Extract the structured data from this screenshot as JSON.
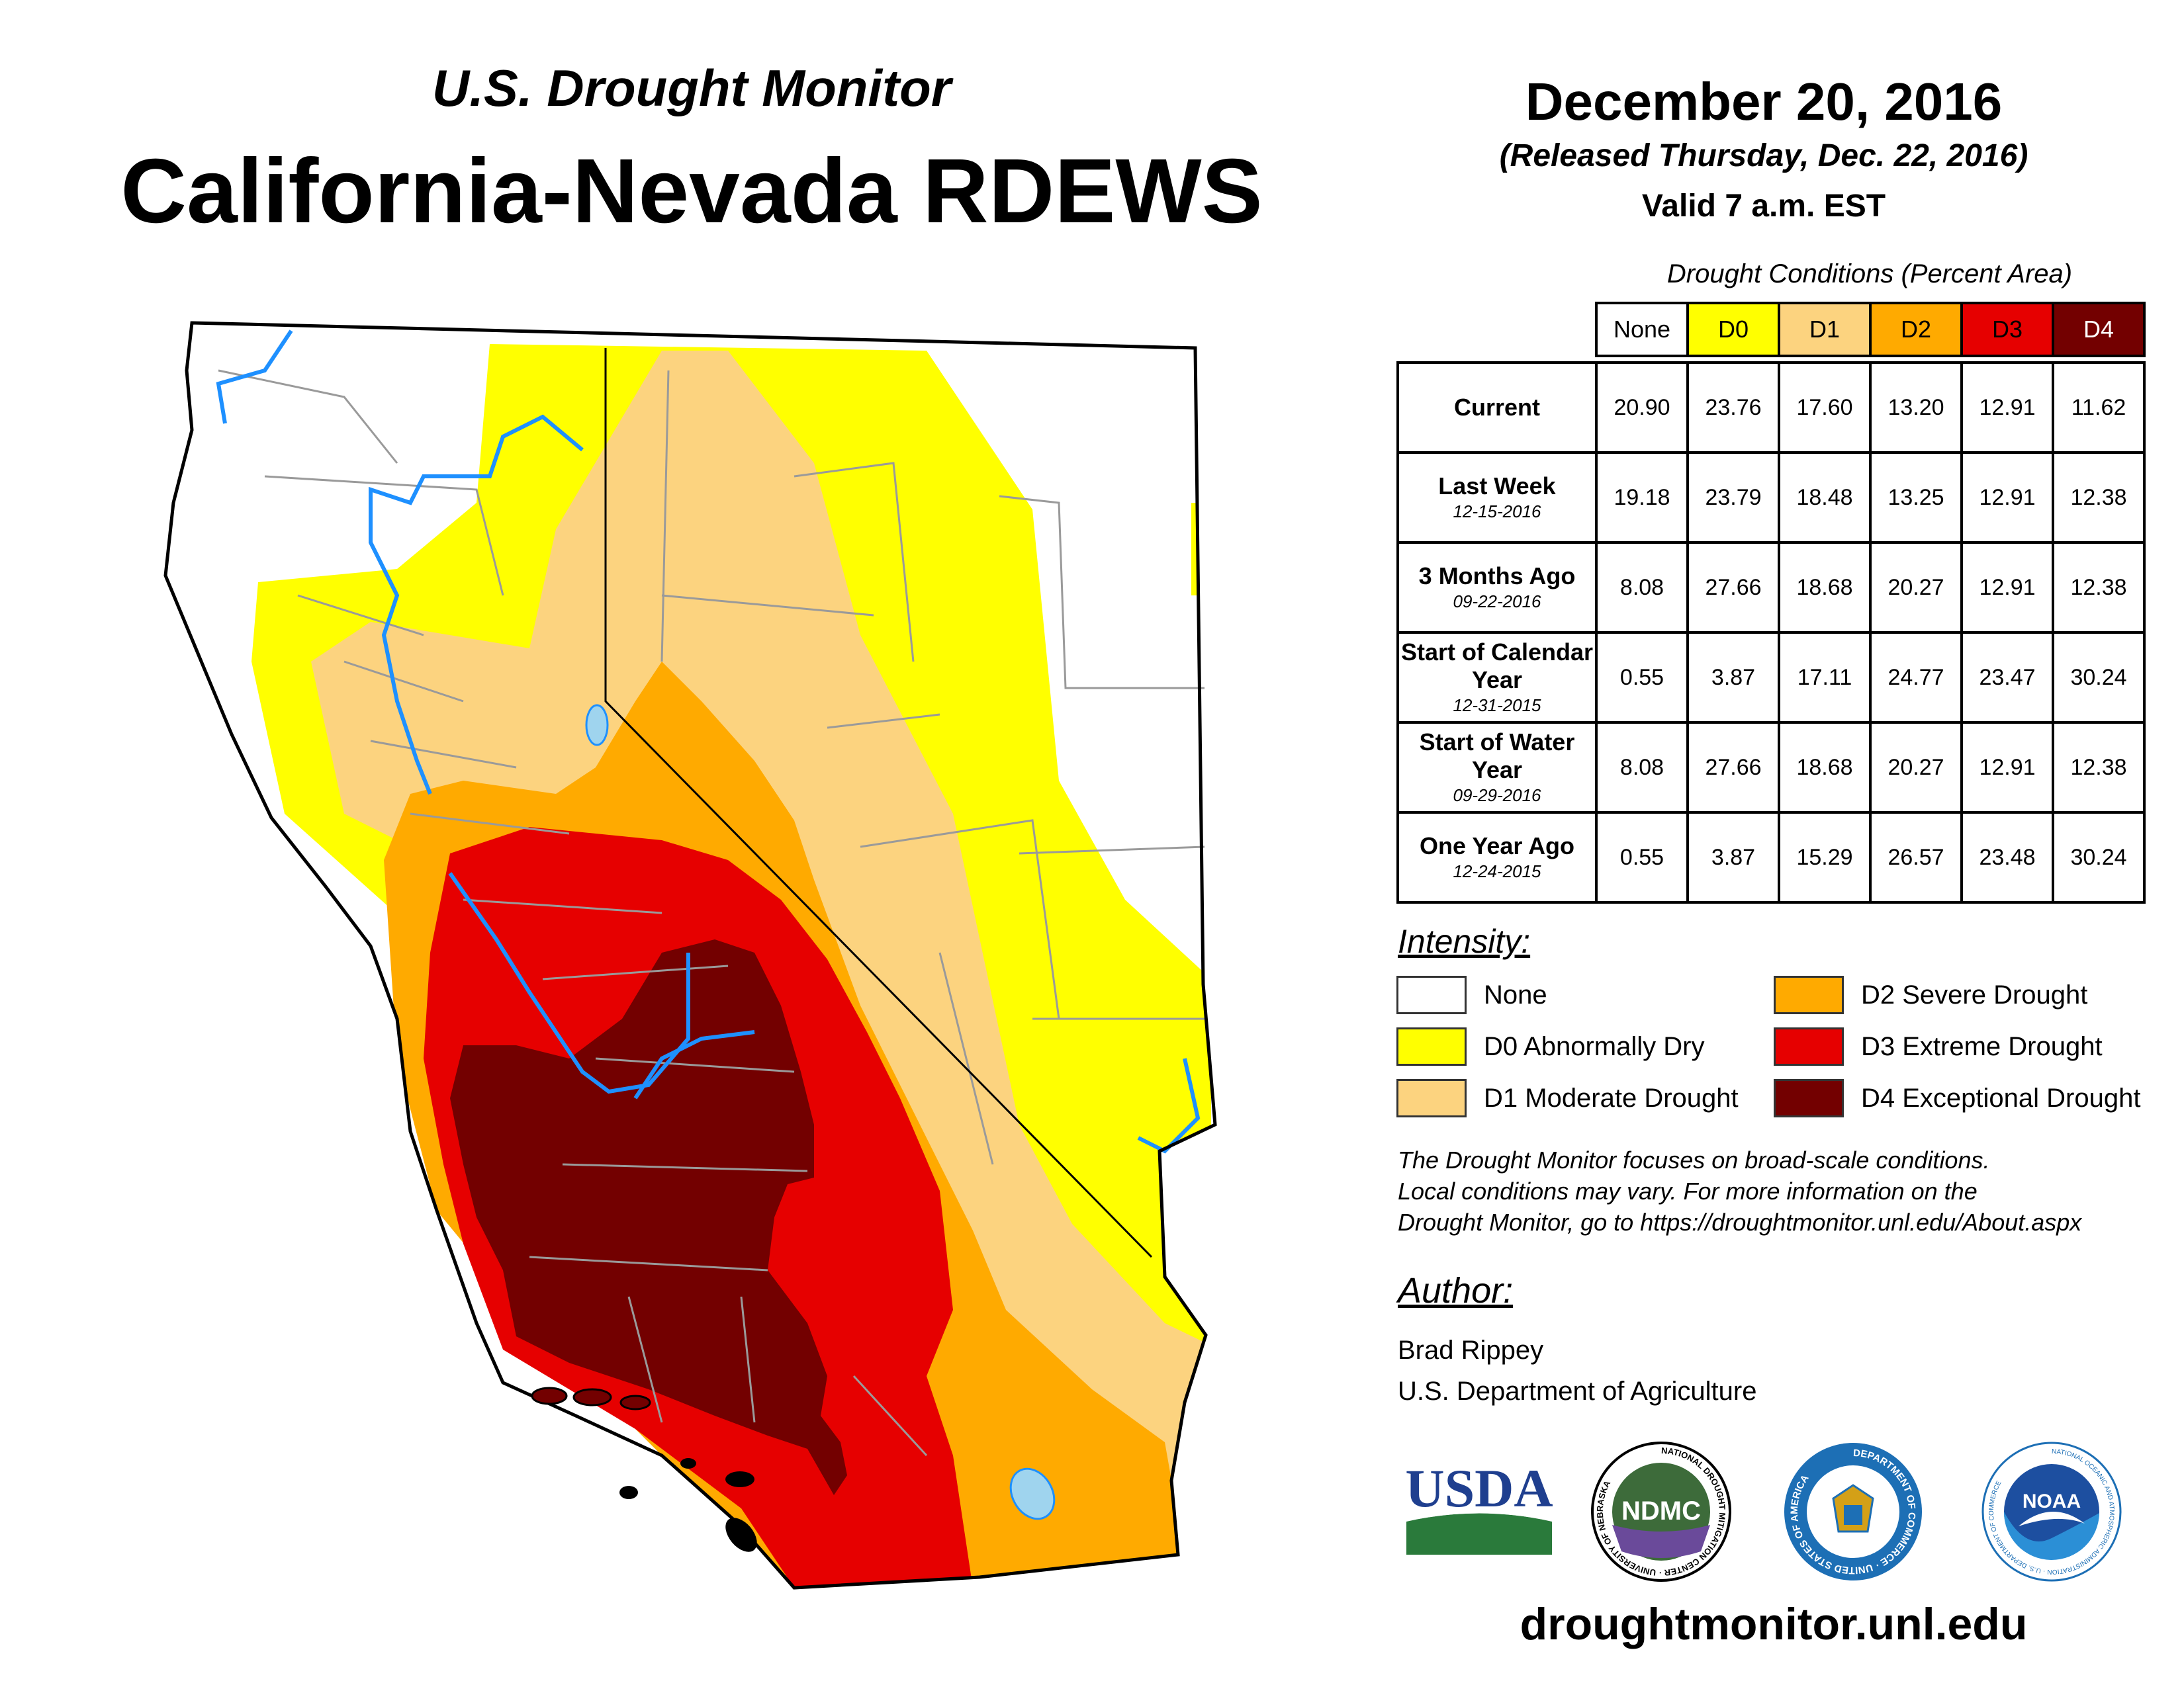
{
  "header": {
    "subtitle": "U.S. Drought Monitor",
    "title": "California-Nevada RDEWS",
    "date": "December 20, 2016",
    "released": "(Released Thursday, Dec. 22, 2016)",
    "valid": "Valid 7 a.m. EST"
  },
  "table": {
    "caption": "Drought Conditions (Percent Area)",
    "columns": [
      "None",
      "D0",
      "D1",
      "D2",
      "D3",
      "D4"
    ],
    "column_colors": [
      "#ffffff",
      "#ffff00",
      "#fcd37f",
      "#ffaa00",
      "#e60000",
      "#730000"
    ],
    "rows": [
      {
        "label": "Current",
        "date": "",
        "values": [
          "20.90",
          "23.76",
          "17.60",
          "13.20",
          "12.91",
          "11.62"
        ]
      },
      {
        "label": "Last Week",
        "date": "12-15-2016",
        "values": [
          "19.18",
          "23.79",
          "18.48",
          "13.25",
          "12.91",
          "12.38"
        ]
      },
      {
        "label": "3 Months Ago",
        "date": "09-22-2016",
        "values": [
          "8.08",
          "27.66",
          "18.68",
          "20.27",
          "12.91",
          "12.38"
        ]
      },
      {
        "label": "Start of Calendar Year",
        "date": "12-31-2015",
        "values": [
          "0.55",
          "3.87",
          "17.11",
          "24.77",
          "23.47",
          "30.24"
        ]
      },
      {
        "label": "Start of Water Year",
        "date": "09-29-2016",
        "values": [
          "8.08",
          "27.66",
          "18.68",
          "20.27",
          "12.91",
          "12.38"
        ]
      },
      {
        "label": "One Year Ago",
        "date": "12-24-2015",
        "values": [
          "0.55",
          "3.87",
          "15.29",
          "26.57",
          "23.48",
          "30.24"
        ]
      }
    ]
  },
  "legend": {
    "title": "Intensity:",
    "items": [
      {
        "label": "None",
        "color": "#ffffff"
      },
      {
        "label": "D0 Abnormally Dry",
        "color": "#ffff00"
      },
      {
        "label": "D1 Moderate Drought",
        "color": "#fcd37f"
      },
      {
        "label": "D2 Severe Drought",
        "color": "#ffaa00"
      },
      {
        "label": "D3 Extreme Drought",
        "color": "#e60000"
      },
      {
        "label": "D4 Exceptional Drought",
        "color": "#730000"
      }
    ]
  },
  "note": {
    "line1": "The Drought Monitor focuses on broad-scale conditions.",
    "line2": "Local conditions may vary. For more information on the",
    "line3": "Drought Monitor, go to https://droughtmonitor.unl.edu/About.aspx"
  },
  "author": {
    "heading": "Author:",
    "name": "Brad Rippey",
    "org": "U.S. Department of Agriculture"
  },
  "logos": {
    "usda": "USDA",
    "ndmc": "NDMC",
    "ndmc_ring": "NATIONAL DROUGHT MITIGATION CENTER · UNIVERSITY OF NEBRASKA",
    "commerce_ring": "DEPARTMENT OF COMMERCE · UNITED STATES OF AMERICA",
    "noaa": "NOAA",
    "noaa_ring": "NATIONAL OCEANIC AND ATMOSPHERIC ADMINISTRATION · U.S. DEPARTMENT OF COMMERCE"
  },
  "url": "droughtmonitor.unl.edu",
  "colors": {
    "none": "#ffffff",
    "d0": "#ffff00",
    "d1": "#fcd37f",
    "d2": "#ffaa00",
    "d3": "#e60000",
    "d4": "#730000",
    "water": "#9fd4ee",
    "rivers": "#1e90ff",
    "counties": "#9a9a9a"
  }
}
